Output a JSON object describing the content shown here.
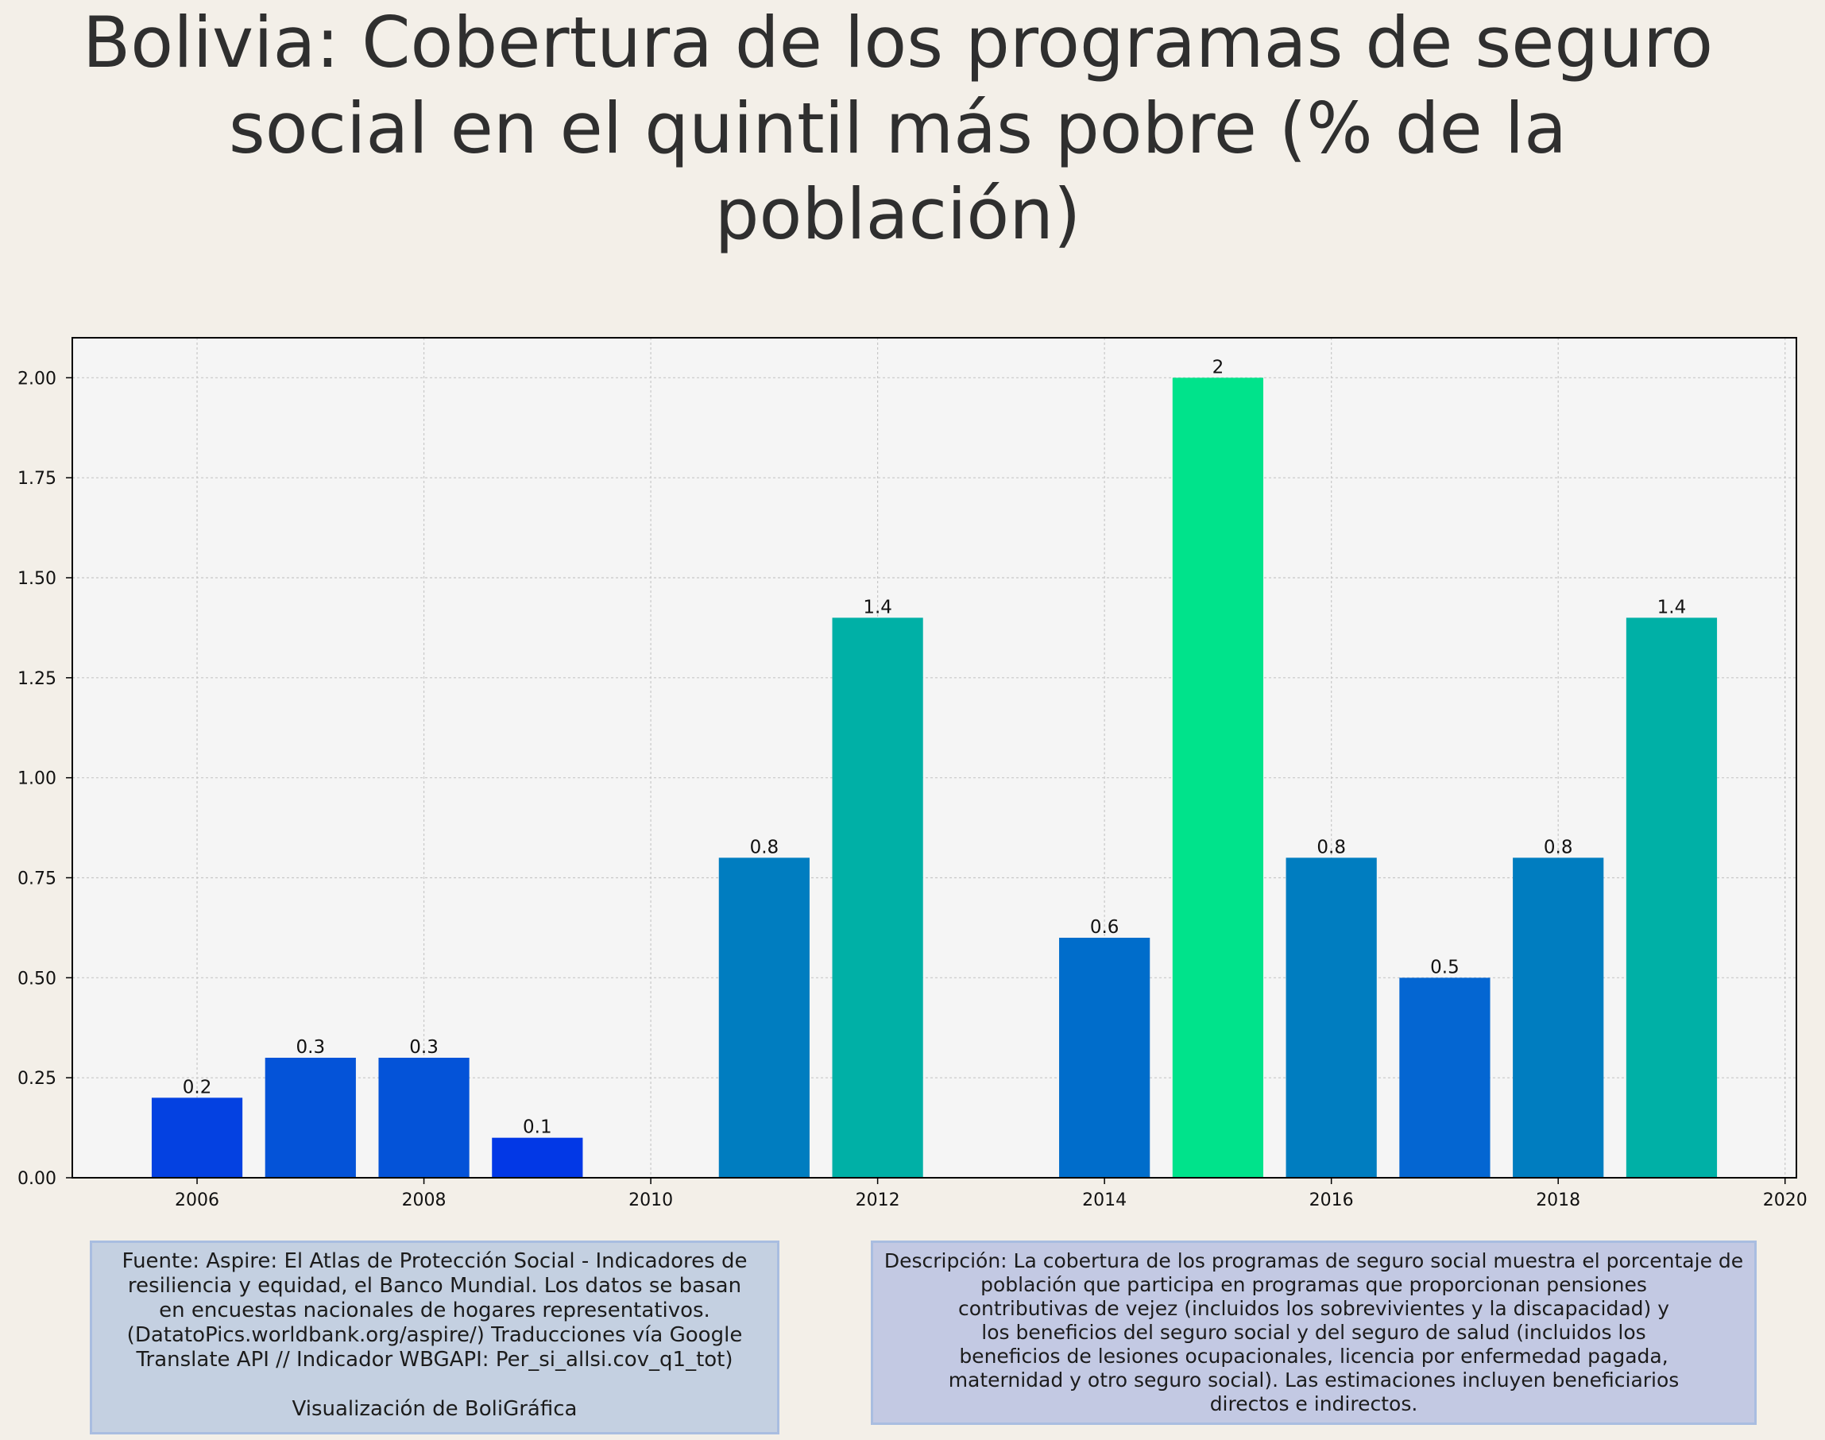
{
  "title_lines": [
    "Bolivia:  Cobertura de los programas de seguro",
    "social en el quintil más pobre (% de la",
    "población)"
  ],
  "chart_data": {
    "type": "bar",
    "title": "Bolivia:  Cobertura de los programas de seguro social en el quintil más pobre (% de la población)",
    "x": [
      2006,
      2007,
      2008,
      2009,
      2011,
      2012,
      2014,
      2015,
      2016,
      2017,
      2018,
      2019
    ],
    "values": [
      0.2,
      0.3,
      0.3,
      0.1,
      0.8,
      1.4,
      0.6,
      2.0,
      0.8,
      0.5,
      0.8,
      1.4
    ],
    "data_labels": [
      "0.2",
      "0.3",
      "0.3",
      "0.1",
      "0.8",
      "1.4",
      "0.6",
      "2",
      "0.8",
      "0.5",
      "0.8",
      "1.4"
    ],
    "bar_colors": [
      "#0441e1",
      "#0453d8",
      "#0453d8",
      "#0238e6",
      "#007dc0",
      "#00b0a6",
      "#006dcb",
      "#00e38b",
      "#007dc0",
      "#0466d2",
      "#007dc0",
      "#00b0a6"
    ],
    "xlim": [
      2004.9,
      2020.1
    ],
    "ylim": [
      0,
      2.1
    ],
    "x_ticks": [
      2006,
      2008,
      2010,
      2012,
      2014,
      2016,
      2018,
      2020
    ],
    "y_ticks": [
      0.0,
      0.25,
      0.5,
      0.75,
      1.0,
      1.25,
      1.5,
      1.75,
      2.0
    ],
    "y_tick_labels": [
      "0.00",
      "0.25",
      "0.50",
      "0.75",
      "1.00",
      "1.25",
      "1.50",
      "1.75",
      "2.00"
    ],
    "xlabel": "",
    "ylabel": "",
    "grid": true,
    "plot_background": "#f5f5f5"
  },
  "source_box": {
    "text_lines": [
      "Fuente: Aspire: El Atlas de Protección Social - Indicadores de",
      "resiliencia y equidad, el Banco Mundial. Los datos se basan",
      "en encuestas nacionales de hogares representativos.",
      "(DatatoPics.worldbank.org/aspire/) Traducciones vía Google",
      "Translate API // Indicador WBGAPI: Per_si_allsi.cov_q1_tot)"
    ],
    "credit": "Visualización de BoliGráfica"
  },
  "description_box": {
    "text_lines": [
      "Descripción: La cobertura de los programas de seguro social muestra el porcentaje de",
      "población que participa en programas que proporcionan pensiones",
      "contributivas de vejez (incluidos los sobrevivientes y la discapacidad) y",
      "los beneficios del seguro social y del seguro de salud (incluidos los",
      "beneficios de lesiones ocupacionales, licencia por enfermedad pagada,",
      "maternidad y otro seguro social). Las estimaciones incluyen beneficiarios",
      "directos e indirectos."
    ]
  }
}
